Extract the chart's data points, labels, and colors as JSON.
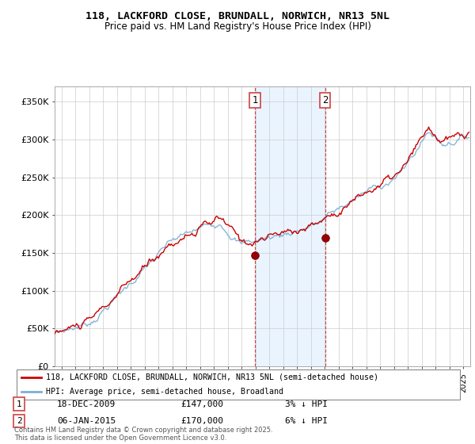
{
  "title_line1": "118, LACKFORD CLOSE, BRUNDALL, NORWICH, NR13 5NL",
  "title_line2": "Price paid vs. HM Land Registry's House Price Index (HPI)",
  "legend_label_red": "118, LACKFORD CLOSE, BRUNDALL, NORWICH, NR13 5NL (semi-detached house)",
  "legend_label_blue": "HPI: Average price, semi-detached house, Broadland",
  "sale1_date": "18-DEC-2009",
  "sale1_price": "£147,000",
  "sale1_note": "3% ↓ HPI",
  "sale2_date": "06-JAN-2015",
  "sale2_price": "£170,000",
  "sale2_note": "6% ↓ HPI",
  "footer": "Contains HM Land Registry data © Crown copyright and database right 2025.\nThis data is licensed under the Open Government Licence v3.0.",
  "ylim_min": 0,
  "ylim_max": 370000,
  "yticks": [
    0,
    50000,
    100000,
    150000,
    200000,
    250000,
    300000,
    350000
  ],
  "ytick_labels": [
    "£0",
    "£50K",
    "£100K",
    "£150K",
    "£200K",
    "£250K",
    "£300K",
    "£350K"
  ],
  "sale1_x": 2009.96,
  "sale1_y": 147000,
  "sale2_x": 2015.02,
  "sale2_y": 170000,
  "color_red": "#cc0000",
  "color_blue": "#7bafd4",
  "color_shade": "#ddeeff",
  "grid_color": "#cccccc",
  "xlim_min": 1995.5,
  "xlim_max": 2025.5
}
